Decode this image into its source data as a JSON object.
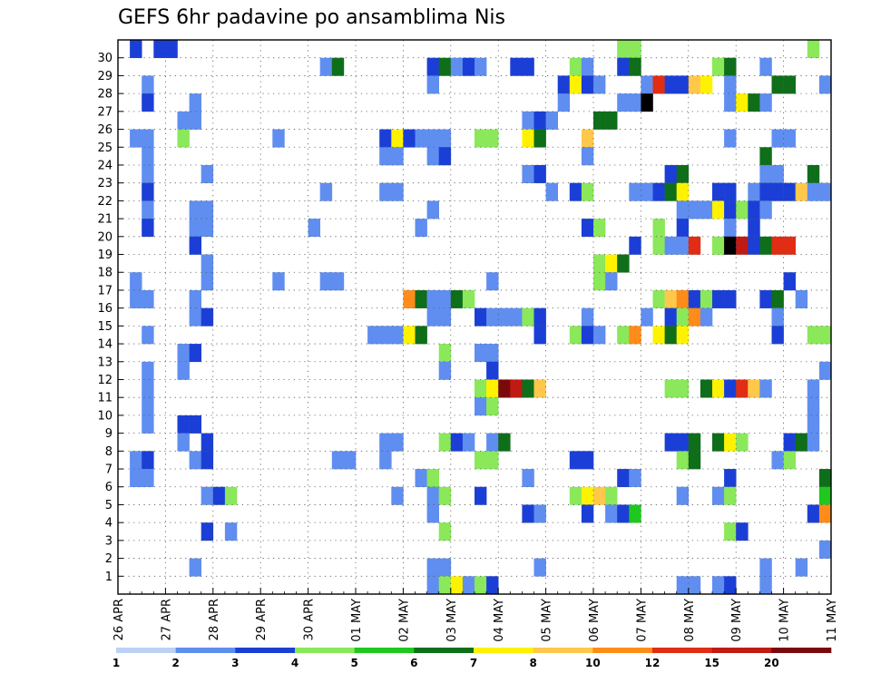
{
  "chart_data": {
    "type": "heatmap",
    "title": "GEFS 6hr padavine po ansamblima Nis",
    "xlabel": "",
    "ylabel": "",
    "x_tick_labels": [
      "26 APR",
      "27 APR",
      "28 APR",
      "29 APR",
      "30 APR",
      "01 MAY",
      "02 MAY",
      "03 MAY",
      "04 MAY",
      "05 MAY",
      "06 MAY",
      "07 MAY",
      "08 MAY",
      "09 MAY",
      "10 MAY",
      "11 MAY"
    ],
    "x_steps_per_day": 4,
    "x_range_steps": [
      0,
      60
    ],
    "y_members": [
      1,
      2,
      3,
      4,
      5,
      6,
      7,
      8,
      9,
      10,
      11,
      12,
      13,
      14,
      15,
      16,
      17,
      18,
      19,
      20,
      21,
      22,
      23,
      24,
      25,
      26,
      27,
      28,
      29,
      30
    ],
    "grid": true,
    "colorbar": {
      "labels": [
        "1",
        "2",
        "3",
        "4",
        "5",
        "6",
        "7",
        "8",
        "10",
        "12",
        "15",
        "20"
      ],
      "colors": [
        "#bdd0f5",
        "#5f8ef0",
        "#1b3fd6",
        "#8ae85a",
        "#1ec81e",
        "#0f6e1a",
        "#fff200",
        "#ffc84a",
        "#ff8c1a",
        "#e02d14",
        "#bf1a14",
        "#7a0a0a"
      ]
    },
    "cells": [
      [
        1,
        30,
        2
      ],
      [
        3,
        30,
        2
      ],
      [
        4,
        30,
        2
      ],
      [
        42,
        30,
        3
      ],
      [
        43,
        30,
        3
      ],
      [
        58,
        30,
        3
      ],
      [
        17,
        29,
        1
      ],
      [
        18,
        29,
        5
      ],
      [
        26,
        29,
        2
      ],
      [
        27,
        29,
        5
      ],
      [
        28,
        29,
        1
      ],
      [
        29,
        29,
        2
      ],
      [
        30,
        29,
        1
      ],
      [
        33,
        29,
        2
      ],
      [
        34,
        29,
        2
      ],
      [
        38,
        29,
        3
      ],
      [
        39,
        29,
        1
      ],
      [
        42,
        29,
        2
      ],
      [
        43,
        29,
        5
      ],
      [
        50,
        29,
        3
      ],
      [
        51,
        29,
        5
      ],
      [
        54,
        29,
        1
      ],
      [
        2,
        28,
        1
      ],
      [
        26,
        28,
        1
      ],
      [
        37,
        28,
        2
      ],
      [
        38,
        28,
        6
      ],
      [
        39,
        28,
        2
      ],
      [
        40,
        28,
        1
      ],
      [
        44,
        28,
        1
      ],
      [
        45,
        28,
        9
      ],
      [
        46,
        28,
        2
      ],
      [
        47,
        28,
        2
      ],
      [
        48,
        28,
        7
      ],
      [
        49,
        28,
        6
      ],
      [
        51,
        28,
        1
      ],
      [
        55,
        28,
        5
      ],
      [
        56,
        28,
        5
      ],
      [
        59,
        28,
        1
      ],
      [
        2,
        27,
        2
      ],
      [
        6,
        27,
        1
      ],
      [
        37,
        27,
        1
      ],
      [
        42,
        27,
        1
      ],
      [
        43,
        27,
        1
      ],
      [
        44,
        27,
        12
      ],
      [
        51,
        27,
        1
      ],
      [
        52,
        27,
        6
      ],
      [
        53,
        27,
        5
      ],
      [
        54,
        27,
        1
      ],
      [
        5,
        26,
        1
      ],
      [
        6,
        26,
        1
      ],
      [
        34,
        26,
        1
      ],
      [
        35,
        26,
        2
      ],
      [
        36,
        26,
        1
      ],
      [
        40,
        26,
        5
      ],
      [
        41,
        26,
        5
      ],
      [
        1,
        25,
        1
      ],
      [
        2,
        25,
        1
      ],
      [
        5,
        25,
        3
      ],
      [
        13,
        25,
        1
      ],
      [
        22,
        25,
        2
      ],
      [
        23,
        25,
        6
      ],
      [
        24,
        25,
        2
      ],
      [
        25,
        25,
        1
      ],
      [
        26,
        25,
        1
      ],
      [
        27,
        25,
        1
      ],
      [
        30,
        25,
        3
      ],
      [
        31,
        25,
        3
      ],
      [
        34,
        25,
        6
      ],
      [
        35,
        25,
        5
      ],
      [
        39,
        25,
        7
      ],
      [
        51,
        25,
        1
      ],
      [
        55,
        25,
        1
      ],
      [
        56,
        25,
        1
      ],
      [
        2,
        24,
        1
      ],
      [
        22,
        24,
        1
      ],
      [
        23,
        24,
        1
      ],
      [
        26,
        24,
        1
      ],
      [
        27,
        24,
        2
      ],
      [
        39,
        24,
        1
      ],
      [
        54,
        24,
        5
      ],
      [
        2,
        23,
        1
      ],
      [
        7,
        23,
        1
      ],
      [
        34,
        23,
        1
      ],
      [
        35,
        23,
        2
      ],
      [
        46,
        23,
        2
      ],
      [
        47,
        23,
        5
      ],
      [
        54,
        23,
        1
      ],
      [
        55,
        23,
        1
      ],
      [
        58,
        23,
        5
      ],
      [
        2,
        22,
        2
      ],
      [
        17,
        22,
        1
      ],
      [
        22,
        22,
        1
      ],
      [
        23,
        22,
        1
      ],
      [
        36,
        22,
        1
      ],
      [
        38,
        22,
        2
      ],
      [
        39,
        22,
        3
      ],
      [
        43,
        22,
        1
      ],
      [
        44,
        22,
        1
      ],
      [
        45,
        22,
        2
      ],
      [
        46,
        22,
        5
      ],
      [
        47,
        22,
        6
      ],
      [
        50,
        22,
        2
      ],
      [
        51,
        22,
        2
      ],
      [
        53,
        22,
        1
      ],
      [
        54,
        22,
        2
      ],
      [
        55,
        22,
        2
      ],
      [
        56,
        22,
        2
      ],
      [
        57,
        22,
        7
      ],
      [
        58,
        22,
        1
      ],
      [
        59,
        22,
        1
      ],
      [
        2,
        21,
        1
      ],
      [
        6,
        21,
        1
      ],
      [
        7,
        21,
        1
      ],
      [
        26,
        21,
        1
      ],
      [
        47,
        21,
        1
      ],
      [
        48,
        21,
        1
      ],
      [
        49,
        21,
        1
      ],
      [
        50,
        21,
        6
      ],
      [
        51,
        21,
        2
      ],
      [
        52,
        21,
        3
      ],
      [
        53,
        21,
        2
      ],
      [
        54,
        21,
        1
      ],
      [
        2,
        20,
        2
      ],
      [
        6,
        20,
        1
      ],
      [
        7,
        20,
        1
      ],
      [
        16,
        20,
        1
      ],
      [
        25,
        20,
        1
      ],
      [
        39,
        20,
        2
      ],
      [
        40,
        20,
        3
      ],
      [
        45,
        20,
        3
      ],
      [
        47,
        20,
        2
      ],
      [
        51,
        20,
        1
      ],
      [
        53,
        20,
        2
      ],
      [
        6,
        19,
        2
      ],
      [
        43,
        19,
        2
      ],
      [
        45,
        19,
        3
      ],
      [
        46,
        19,
        1
      ],
      [
        47,
        19,
        1
      ],
      [
        48,
        19,
        9
      ],
      [
        50,
        19,
        3
      ],
      [
        51,
        19,
        12
      ],
      [
        52,
        19,
        10
      ],
      [
        53,
        19,
        2
      ],
      [
        54,
        19,
        5
      ],
      [
        55,
        19,
        9
      ],
      [
        56,
        19,
        9
      ],
      [
        7,
        18,
        1
      ],
      [
        40,
        18,
        3
      ],
      [
        41,
        18,
        6
      ],
      [
        42,
        18,
        5
      ],
      [
        1,
        17,
        1
      ],
      [
        7,
        17,
        1
      ],
      [
        13,
        17,
        1
      ],
      [
        17,
        17,
        1
      ],
      [
        18,
        17,
        1
      ],
      [
        31,
        17,
        1
      ],
      [
        40,
        17,
        3
      ],
      [
        41,
        17,
        1
      ],
      [
        56,
        17,
        2
      ],
      [
        1,
        16,
        1
      ],
      [
        2,
        16,
        1
      ],
      [
        6,
        16,
        1
      ],
      [
        24,
        16,
        8
      ],
      [
        25,
        16,
        5
      ],
      [
        26,
        16,
        1
      ],
      [
        27,
        16,
        1
      ],
      [
        28,
        16,
        5
      ],
      [
        29,
        16,
        3
      ],
      [
        45,
        16,
        3
      ],
      [
        46,
        16,
        7
      ],
      [
        47,
        16,
        8
      ],
      [
        48,
        16,
        2
      ],
      [
        49,
        16,
        3
      ],
      [
        50,
        16,
        2
      ],
      [
        51,
        16,
        2
      ],
      [
        54,
        16,
        2
      ],
      [
        55,
        16,
        5
      ],
      [
        57,
        16,
        1
      ],
      [
        6,
        15,
        1
      ],
      [
        7,
        15,
        2
      ],
      [
        26,
        15,
        1
      ],
      [
        27,
        15,
        1
      ],
      [
        30,
        15,
        2
      ],
      [
        31,
        15,
        1
      ],
      [
        32,
        15,
        1
      ],
      [
        33,
        15,
        1
      ],
      [
        34,
        15,
        3
      ],
      [
        35,
        15,
        2
      ],
      [
        39,
        15,
        1
      ],
      [
        44,
        15,
        1
      ],
      [
        46,
        15,
        2
      ],
      [
        47,
        15,
        3
      ],
      [
        48,
        15,
        8
      ],
      [
        49,
        15,
        1
      ],
      [
        55,
        15,
        1
      ],
      [
        2,
        14,
        1
      ],
      [
        21,
        14,
        1
      ],
      [
        22,
        14,
        1
      ],
      [
        23,
        14,
        1
      ],
      [
        24,
        14,
        6
      ],
      [
        25,
        14,
        5
      ],
      [
        35,
        14,
        2
      ],
      [
        38,
        14,
        3
      ],
      [
        39,
        14,
        2
      ],
      [
        40,
        14,
        1
      ],
      [
        42,
        14,
        3
      ],
      [
        43,
        14,
        8
      ],
      [
        45,
        14,
        6
      ],
      [
        46,
        14,
        5
      ],
      [
        47,
        14,
        6
      ],
      [
        55,
        14,
        2
      ],
      [
        58,
        14,
        3
      ],
      [
        59,
        14,
        3
      ],
      [
        5,
        13,
        1
      ],
      [
        6,
        13,
        2
      ],
      [
        27,
        13,
        3
      ],
      [
        30,
        13,
        1
      ],
      [
        31,
        13,
        1
      ],
      [
        2,
        12,
        1
      ],
      [
        5,
        12,
        1
      ],
      [
        27,
        12,
        1
      ],
      [
        31,
        12,
        2
      ],
      [
        59,
        12,
        1
      ],
      [
        2,
        11,
        1
      ],
      [
        30,
        11,
        3
      ],
      [
        31,
        11,
        6
      ],
      [
        32,
        11,
        11
      ],
      [
        33,
        11,
        10
      ],
      [
        34,
        11,
        5
      ],
      [
        35,
        11,
        7
      ],
      [
        46,
        11,
        3
      ],
      [
        47,
        11,
        3
      ],
      [
        49,
        11,
        5
      ],
      [
        50,
        11,
        6
      ],
      [
        51,
        11,
        2
      ],
      [
        52,
        11,
        9
      ],
      [
        53,
        11,
        7
      ],
      [
        54,
        11,
        1
      ],
      [
        58,
        11,
        1
      ],
      [
        2,
        10,
        1
      ],
      [
        30,
        10,
        1
      ],
      [
        31,
        10,
        3
      ],
      [
        58,
        10,
        1
      ],
      [
        2,
        9,
        1
      ],
      [
        5,
        9,
        2
      ],
      [
        6,
        9,
        2
      ],
      [
        58,
        9,
        1
      ],
      [
        5,
        8,
        1
      ],
      [
        7,
        8,
        2
      ],
      [
        22,
        8,
        1
      ],
      [
        23,
        8,
        1
      ],
      [
        27,
        8,
        3
      ],
      [
        28,
        8,
        2
      ],
      [
        29,
        8,
        1
      ],
      [
        31,
        8,
        1
      ],
      [
        32,
        8,
        5
      ],
      [
        46,
        8,
        2
      ],
      [
        47,
        8,
        2
      ],
      [
        48,
        8,
        5
      ],
      [
        50,
        8,
        5
      ],
      [
        51,
        8,
        6
      ],
      [
        52,
        8,
        3
      ],
      [
        56,
        8,
        2
      ],
      [
        57,
        8,
        5
      ],
      [
        58,
        8,
        1
      ],
      [
        1,
        7,
        1
      ],
      [
        2,
        7,
        2
      ],
      [
        6,
        7,
        1
      ],
      [
        7,
        7,
        2
      ],
      [
        18,
        7,
        1
      ],
      [
        19,
        7,
        1
      ],
      [
        22,
        7,
        1
      ],
      [
        30,
        7,
        3
      ],
      [
        31,
        7,
        3
      ],
      [
        38,
        7,
        2
      ],
      [
        39,
        7,
        2
      ],
      [
        47,
        7,
        3
      ],
      [
        48,
        7,
        5
      ],
      [
        55,
        7,
        1
      ],
      [
        56,
        7,
        3
      ],
      [
        1,
        6,
        1
      ],
      [
        2,
        6,
        1
      ],
      [
        25,
        6,
        1
      ],
      [
        26,
        6,
        3
      ],
      [
        34,
        6,
        1
      ],
      [
        42,
        6,
        2
      ],
      [
        43,
        6,
        1
      ],
      [
        51,
        6,
        2
      ],
      [
        59,
        6,
        5
      ],
      [
        7,
        5,
        1
      ],
      [
        8,
        5,
        2
      ],
      [
        9,
        5,
        3
      ],
      [
        23,
        5,
        1
      ],
      [
        26,
        5,
        1
      ],
      [
        27,
        5,
        3
      ],
      [
        30,
        5,
        2
      ],
      [
        38,
        5,
        3
      ],
      [
        39,
        5,
        6
      ],
      [
        40,
        5,
        7
      ],
      [
        41,
        5,
        3
      ],
      [
        47,
        5,
        1
      ],
      [
        50,
        5,
        1
      ],
      [
        51,
        5,
        3
      ],
      [
        59,
        5,
        4
      ],
      [
        26,
        4,
        1
      ],
      [
        34,
        4,
        2
      ],
      [
        35,
        4,
        1
      ],
      [
        39,
        4,
        2
      ],
      [
        41,
        4,
        1
      ],
      [
        42,
        4,
        2
      ],
      [
        43,
        4,
        4
      ],
      [
        58,
        4,
        2
      ],
      [
        59,
        4,
        8
      ],
      [
        7,
        3,
        2
      ],
      [
        9,
        3,
        1
      ],
      [
        27,
        3,
        3
      ],
      [
        51,
        3,
        3
      ],
      [
        52,
        3,
        2
      ],
      [
        59,
        2,
        1
      ],
      [
        6,
        1,
        1
      ],
      [
        26,
        1,
        1
      ],
      [
        27,
        1,
        1
      ],
      [
        35,
        1,
        1
      ],
      [
        54,
        1,
        1
      ],
      [
        57,
        1,
        1
      ],
      [
        26,
        0,
        1
      ],
      [
        27,
        0,
        3
      ],
      [
        28,
        0,
        6
      ],
      [
        29,
        0,
        1
      ],
      [
        30,
        0,
        3
      ],
      [
        31,
        0,
        2
      ],
      [
        47,
        0,
        1
      ],
      [
        48,
        0,
        1
      ],
      [
        50,
        0,
        1
      ],
      [
        51,
        0,
        2
      ],
      [
        54,
        0,
        1
      ]
    ]
  }
}
